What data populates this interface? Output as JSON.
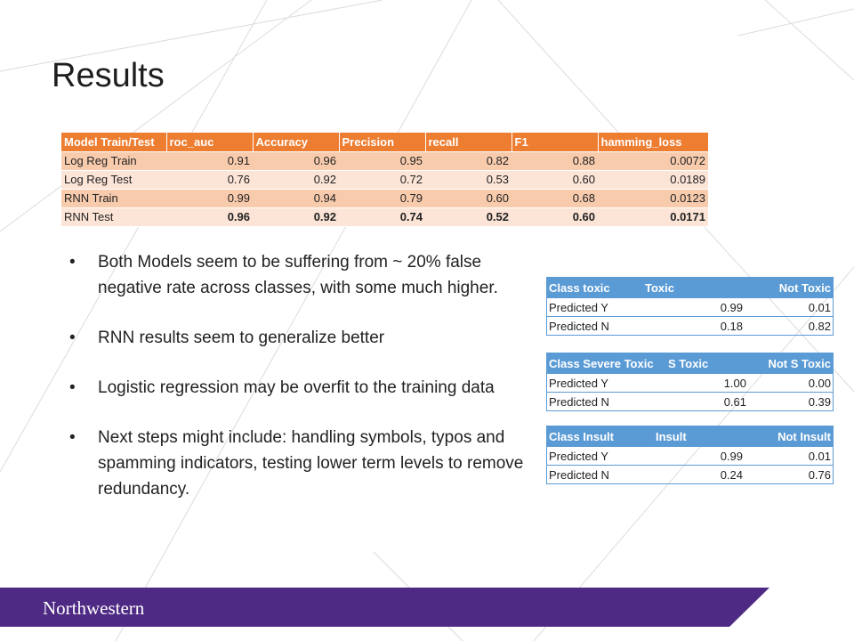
{
  "slide": {
    "title": "Results",
    "footer_logo": "Northwestern",
    "colors": {
      "table_header": "#ed7d31",
      "table_row_dark": "#f8cbad",
      "table_row_light": "#fce4d6",
      "conf_header": "#5b9bd5",
      "footer_band": "#4e2a84"
    }
  },
  "metrics_table": {
    "headers": [
      "Model Train/Test",
      "roc_auc",
      "Accuracy",
      "Precision",
      "recall",
      "F1",
      "hamming_loss"
    ],
    "rows": [
      [
        "Log Reg Train",
        "0.91",
        "0.96",
        "0.95",
        "0.82",
        "0.88",
        "0.0072"
      ],
      [
        "Log Reg Test",
        "0.76",
        "0.92",
        "0.72",
        "0.53",
        "0.60",
        "0.0189"
      ],
      [
        "RNN Train",
        "0.99",
        "0.94",
        "0.79",
        "0.60",
        "0.68",
        "0.0123"
      ],
      [
        "RNN Test",
        "0.96",
        "0.92",
        "0.74",
        "0.52",
        "0.60",
        "0.0171"
      ]
    ]
  },
  "bullets": [
    "Both Models seem to be suffering from ~ 20% false negative rate across classes, with some much higher.",
    "RNN results seem to generalize better",
    "Logistic regression may be overfit to the training data",
    "Next steps might include: handling symbols, typos and spamming indicators, testing lower term levels to remove redundancy."
  ],
  "confusion_tables": {
    "toxic": {
      "headers": [
        "Class toxic",
        "Toxic",
        "Not Toxic"
      ],
      "rows": [
        [
          "Predicted Y",
          "0.99",
          "0.01"
        ],
        [
          "Predicted N",
          "0.18",
          "0.82"
        ]
      ]
    },
    "severe": {
      "headers": [
        "Class Severe Toxic",
        "S Toxic",
        "Not  S Toxic"
      ],
      "rows": [
        [
          "Predicted Y",
          "1.00",
          "0.00"
        ],
        [
          "Predicted N",
          "0.61",
          "0.39"
        ]
      ]
    },
    "insult": {
      "headers": [
        "Class Insult",
        "Insult",
        "Not Insult"
      ],
      "rows": [
        [
          "Predicted Y",
          "0.99",
          "0.01"
        ],
        [
          "Predicted N",
          "0.24",
          "0.76"
        ]
      ]
    }
  }
}
